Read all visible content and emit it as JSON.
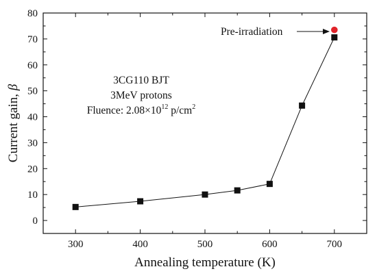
{
  "chart_data": {
    "type": "scatter",
    "title": "",
    "xlabel": "Annealing temperature (K)",
    "ylabel_text": "Current gain, ",
    "ylabel_symbol": "β",
    "xlim": [
      250,
      750
    ],
    "ylim": [
      -5,
      80
    ],
    "xticks": [
      300,
      400,
      500,
      600,
      700
    ],
    "yticks": [
      0,
      10,
      20,
      30,
      40,
      50,
      60,
      70,
      80
    ],
    "grid": false,
    "legend": "none",
    "series": [
      {
        "marker": "square",
        "color": "#111111",
        "connected": true,
        "points": [
          {
            "x": 300,
            "y": 5.2
          },
          {
            "x": 400,
            "y": 7.4
          },
          {
            "x": 500,
            "y": 10.0
          },
          {
            "x": 550,
            "y": 11.6
          },
          {
            "x": 600,
            "y": 14.1
          },
          {
            "x": 650,
            "y": 44.3
          },
          {
            "x": 700,
            "y": 70.6
          }
        ]
      },
      {
        "name": "Pre-irradiation",
        "marker": "circle",
        "color": "#e0242a",
        "connected": false,
        "points": [
          {
            "x": 700,
            "y": 73.5
          }
        ]
      }
    ],
    "annotations": {
      "pointer_label": "Pre-irradiation",
      "box_line1": "3CG110 BJT",
      "box_line2": "3MeV protons",
      "fluence_prefix": "Fluence: 2.08×10",
      "fluence_exp": "12",
      "fluence_unit": " p/cm",
      "fluence_unit_exp": "2"
    }
  }
}
